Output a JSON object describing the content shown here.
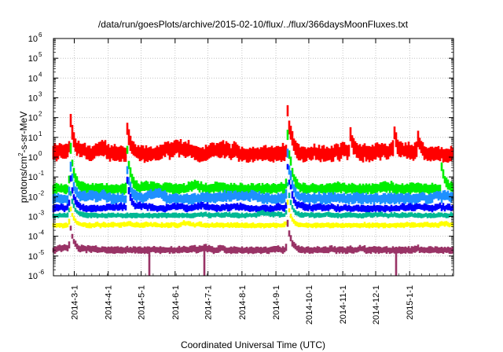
{
  "chart_data": {
    "type": "line",
    "title": "/data/run/goesPlots/archive/2015-02-10/flux/../flux/366daysMoonFluxes.txt",
    "xlabel": "Coordinated Universal Time (UTC)",
    "ylabel": "protons/cm²-s-sr-MeV",
    "ylabel_parts": [
      "protons/cm",
      "2",
      "-s-sr-MeV"
    ],
    "y_scale": "log",
    "ylim_exponents": [
      -6,
      6
    ],
    "y_tick_exponents": [
      -6,
      -5,
      -4,
      -3,
      -2,
      -1,
      0,
      1,
      2,
      3,
      4,
      5,
      6
    ],
    "xlim": [
      "2014-02-10",
      "2015-02-10"
    ],
    "x_tick_labels": [
      "2014-3-1",
      "2014-4-1",
      "2014-5-1",
      "2014-6-1",
      "2014-7-1",
      "2014-8-1",
      "2014-9-1",
      "2014-10-1",
      "2014-11-1",
      "2014-12-1",
      "2015-1-1"
    ],
    "grid": true,
    "legend": "none",
    "series": [
      {
        "color": "#ff0000",
        "baseline_log": [
          -0.3,
          0.6
        ],
        "peaks": [
          [
            "2014-02-25",
            2.3
          ],
          [
            "2014-04-18",
            1.6
          ],
          [
            "2014-09-11",
            2.9
          ],
          [
            "2014-09-14",
            1.5
          ],
          [
            "2014-11-08",
            1.2
          ],
          [
            "2014-12-18",
            1.3
          ],
          [
            "2015-01-08",
            1.1
          ]
        ]
      },
      {
        "color": "#00ee00",
        "baseline_log": [
          -1.9,
          -1.3
        ],
        "peaks": [
          [
            "2014-02-25",
            1.0
          ],
          [
            "2014-04-18",
            0.6
          ],
          [
            "2014-09-11",
            1.8
          ],
          [
            "2014-09-14",
            0.0
          ],
          [
            "2015-01-30",
            -0.4
          ]
        ]
      },
      {
        "color": "#1e90ff",
        "baseline_log": [
          -2.4,
          -1.8
        ],
        "peaks": [
          [
            "2014-02-25",
            0.0
          ],
          [
            "2014-04-18",
            -0.5
          ],
          [
            "2014-09-11",
            0.8
          ],
          [
            "2014-09-14",
            -0.7
          ]
        ]
      },
      {
        "color": "#0000ff",
        "baseline_log": [
          -2.8,
          -2.4
        ],
        "peaks": [
          [
            "2014-02-25",
            -0.7
          ],
          [
            "2014-04-18",
            -1.0
          ],
          [
            "2014-09-11",
            0.0
          ],
          [
            "2014-09-14",
            -1.3
          ]
        ]
      },
      {
        "color": "#00b894",
        "baseline_log": [
          -3.1,
          -2.8
        ],
        "peaks": [
          [
            "2014-02-25",
            -1.5
          ],
          [
            "2014-09-11",
            -1.0
          ]
        ]
      },
      {
        "color": "#ffff00",
        "baseline_log": [
          -3.6,
          -3.3
        ],
        "peaks": [
          [
            "2014-02-25",
            -2.4
          ],
          [
            "2014-09-11",
            -2.0
          ]
        ]
      },
      {
        "color": "#993366",
        "baseline_log": [
          -4.9,
          -4.5
        ],
        "peaks": [
          [
            "2014-02-25",
            -3.3
          ],
          [
            "2014-09-11",
            -3.0
          ]
        ],
        "dropouts": [
          "2014-05-08",
          "2014-06-28",
          "2014-12-20"
        ]
      }
    ]
  }
}
